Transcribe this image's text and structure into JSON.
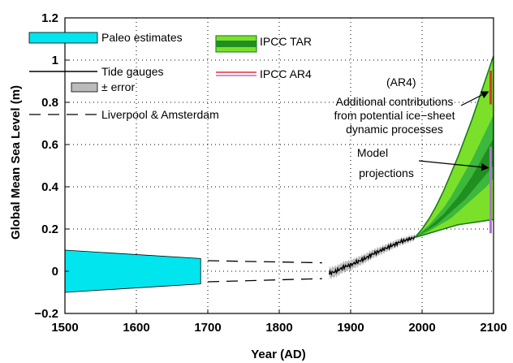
{
  "chart_data": {
    "type": "line",
    "xlabel": "Year (AD)",
    "ylabel": "Global Mean Sea Level (m)",
    "xlim": [
      1500,
      2100
    ],
    "ylim": [
      -0.2,
      1.2
    ],
    "x_ticks": [
      "1500",
      "1600",
      "1700",
      "1800",
      "1900",
      "2000",
      "2100"
    ],
    "y_ticks": [
      "−0.2",
      "0",
      "0.2",
      "0.4",
      "0.6",
      "0.8",
      "1",
      "1.2"
    ],
    "grid": true,
    "legend": [
      {
        "label": "Paleo estimates",
        "marker": "band",
        "color": "#00e5ee"
      },
      {
        "label": "Tide gauges",
        "marker": "line",
        "color": "#000000"
      },
      {
        "label": "± error",
        "marker": "band",
        "color": "#bbbbbb"
      },
      {
        "label": "Liverpool & Amsterdam",
        "marker": "dashed",
        "color": "#000000"
      },
      {
        "label": "IPCC TAR",
        "marker": "band",
        "color": "#2a9a2a"
      },
      {
        "label": "IPCC AR4",
        "marker": "line",
        "color": "#dd3333"
      }
    ],
    "annotations": {
      "ar4_tag": "(AR4)",
      "ice_sheet": [
        "Additional contributions",
        "from potential ice−sheet",
        "dynamic processes"
      ],
      "model": [
        "Model",
        "projections"
      ]
    },
    "series": [
      {
        "name": "Paleo estimates",
        "kind": "band",
        "color": "#00e5ee",
        "x": [
          1500,
          1690
        ],
        "upper": [
          0.1,
          0.06
        ],
        "lower": [
          -0.1,
          -0.06
        ]
      },
      {
        "name": "Liverpool & Amsterdam",
        "kind": "dashed",
        "color": "#000000",
        "lines": [
          {
            "x": [
              1700,
              1860
            ],
            "y": [
              0.05,
              0.04
            ]
          },
          {
            "x": [
              1700,
              1860
            ],
            "y": [
              -0.05,
              -0.035
            ]
          }
        ]
      },
      {
        "name": "Tide gauges",
        "kind": "line",
        "color": "#000000",
        "x": [
          1870,
          1880,
          1890,
          1900,
          1910,
          1920,
          1930,
          1940,
          1950,
          1960,
          1970,
          1980,
          1990
        ],
        "y": [
          -0.01,
          0.0,
          0.02,
          0.03,
          0.045,
          0.06,
          0.08,
          0.095,
          0.11,
          0.125,
          0.14,
          0.15,
          0.16
        ],
        "error": 0.025
      },
      {
        "name": "IPCC TAR",
        "kind": "fan",
        "color": "#2a9a2a",
        "x": [
          1990,
          2000,
          2010,
          2020,
          2030,
          2040,
          2050,
          2060,
          2070,
          2080,
          2090,
          2100
        ],
        "outer_upper": [
          0.16,
          0.2,
          0.25,
          0.31,
          0.38,
          0.46,
          0.54,
          0.63,
          0.72,
          0.82,
          0.92,
          1.02
        ],
        "outer_lower": [
          0.16,
          0.17,
          0.18,
          0.19,
          0.2,
          0.21,
          0.22,
          0.225,
          0.23,
          0.235,
          0.24,
          0.245
        ],
        "mid_upper": [
          0.16,
          0.19,
          0.22,
          0.26,
          0.3,
          0.35,
          0.41,
          0.47,
          0.53,
          0.6,
          0.67,
          0.74
        ],
        "mid_lower": [
          0.16,
          0.175,
          0.19,
          0.21,
          0.23,
          0.25,
          0.28,
          0.31,
          0.34,
          0.37,
          0.4,
          0.44
        ],
        "inner_upper": [
          0.16,
          0.185,
          0.21,
          0.24,
          0.27,
          0.31,
          0.35,
          0.4,
          0.45,
          0.51,
          0.57,
          0.63
        ],
        "inner_lower": [
          0.16,
          0.18,
          0.2,
          0.22,
          0.25,
          0.28,
          0.31,
          0.34,
          0.38,
          0.42,
          0.46,
          0.5
        ]
      },
      {
        "name": "IPCC AR4",
        "kind": "bars",
        "x": 2096,
        "model_range": [
          0.18,
          0.59
        ],
        "ice_sheet_range": [
          0.79,
          0.95
        ],
        "colors": {
          "model": "#b46ed6",
          "ice": "#dd3333"
        }
      }
    ]
  }
}
